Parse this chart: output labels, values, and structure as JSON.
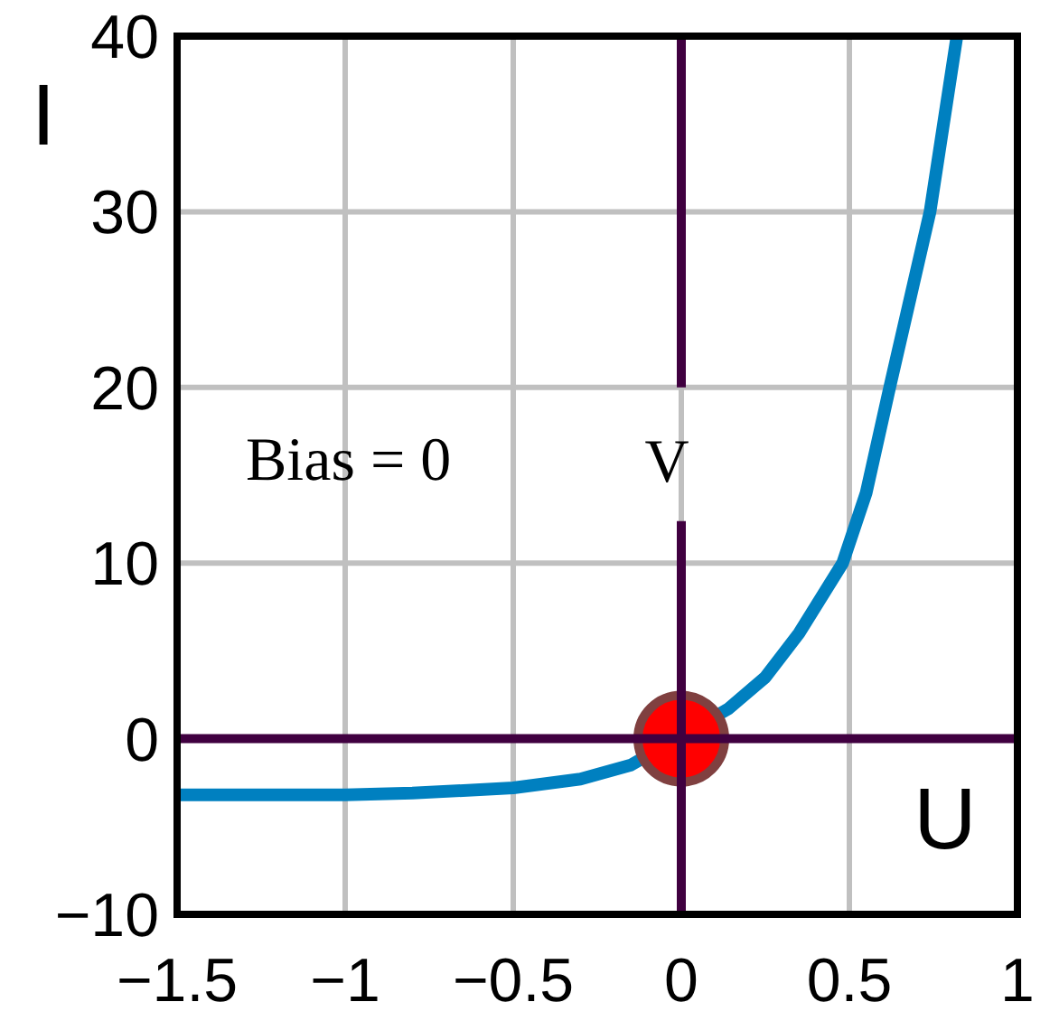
{
  "chart_data": {
    "type": "line",
    "xlabel": "U",
    "ylabel": "I",
    "xlim": [
      -1.5,
      1
    ],
    "xticks": [
      -1.5,
      -1,
      -0.5,
      0,
      0.5,
      1
    ],
    "ylim": [
      -10,
      40
    ],
    "yticks": [
      -10,
      0,
      10,
      20,
      30,
      40
    ],
    "grid": true,
    "series": [
      {
        "color": "#0080c0",
        "x": [
          -1.5,
          -1,
          -0.8,
          -0.5,
          -0.3,
          -0.15,
          0.14,
          0.25,
          0.35,
          0.48,
          0.55,
          0.62,
          0.68,
          0.74,
          0.82
        ],
        "values": [
          -3.2,
          -3.2,
          -3.1,
          -2.8,
          -2.3,
          -1.5,
          1.7,
          3.5,
          6,
          10,
          14,
          20,
          25,
          30,
          40
        ]
      },
      {
        "type": "scatter",
        "color": "#ff0000",
        "x": [
          0
        ],
        "values": [
          0
        ]
      }
    ],
    "ref_lines": [
      {
        "axis": "x",
        "value": 0,
        "label": "V",
        "color": "#400040"
      },
      {
        "axis": "y",
        "value": 0,
        "color": "#400040"
      }
    ],
    "annotations": [
      "Bias = 0"
    ]
  }
}
